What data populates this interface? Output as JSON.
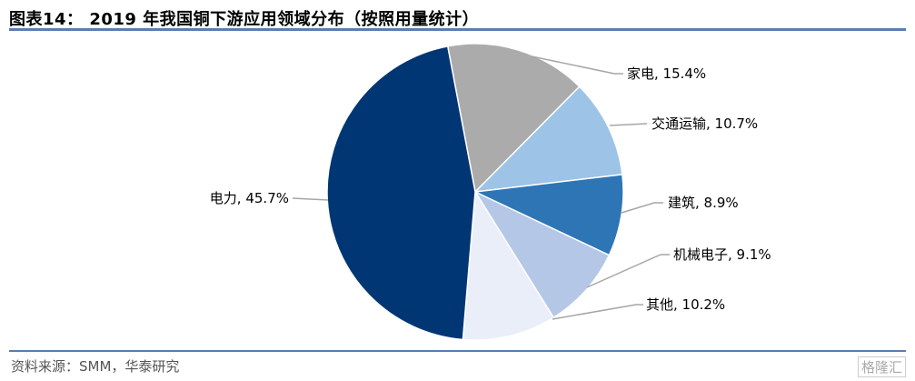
{
  "title": "图表14： 2019 年我国铜下游应用领域分布（按照用量统计）",
  "source": "资料来源：SMM，华泰研究",
  "watermark": "格隆汇",
  "chart_data": {
    "type": "pie",
    "title": "",
    "slices": [
      {
        "label": "家电",
        "value": 15.4,
        "text": "家电, 15.4%",
        "color": "#ababab"
      },
      {
        "label": "交通运输",
        "value": 10.7,
        "text": "交通运输, 10.7%",
        "color": "#9dc3e6"
      },
      {
        "label": "建筑",
        "value": 8.9,
        "text": "建筑, 8.9%",
        "color": "#2e75b6"
      },
      {
        "label": "机械电子",
        "value": 9.1,
        "text": "机械电子, 9.1%",
        "color": "#b4c7e7"
      },
      {
        "label": "其他",
        "value": 10.2,
        "text": "其他, 10.2%",
        "color": "#e9eef8"
      },
      {
        "label": "电力",
        "value": 45.7,
        "text": "电力, 45.7%",
        "color": "#003674"
      }
    ],
    "direction": "clockwise",
    "legend": "none"
  }
}
